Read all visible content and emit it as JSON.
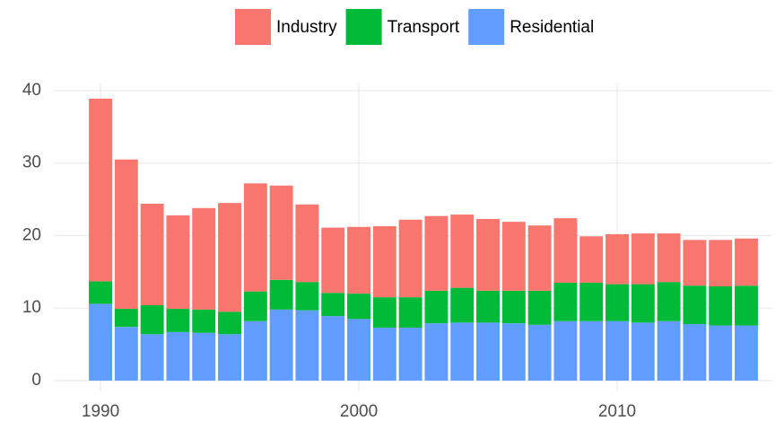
{
  "chart_data": {
    "type": "stacked_bar",
    "x": [
      1990,
      1991,
      1992,
      1993,
      1994,
      1995,
      1996,
      1997,
      1998,
      1999,
      2000,
      2001,
      2002,
      2003,
      2004,
      2005,
      2006,
      2007,
      2008,
      2009,
      2010,
      2011,
      2012,
      2013,
      2014,
      2015
    ],
    "series": [
      {
        "name": "Industry",
        "color": "#f8766d",
        "values": [
          25.2,
          20.6,
          14.0,
          12.9,
          14.0,
          15.0,
          14.9,
          13.0,
          10.7,
          9.0,
          9.2,
          9.8,
          10.7,
          10.3,
          10.1,
          9.9,
          9.5,
          9.0,
          8.9,
          6.4,
          6.9,
          7.0,
          6.7,
          6.3,
          6.4,
          6.5
        ]
      },
      {
        "name": "Transport",
        "color": "#00ba38",
        "values": [
          3.1,
          2.5,
          4.0,
          3.2,
          3.2,
          3.1,
          4.1,
          4.1,
          3.9,
          3.2,
          3.5,
          4.2,
          4.2,
          4.5,
          4.8,
          4.4,
          4.5,
          4.7,
          5.3,
          5.3,
          5.1,
          5.3,
          5.4,
          5.3,
          5.4,
          5.5
        ]
      },
      {
        "name": "Residential",
        "color": "#619cff",
        "values": [
          10.6,
          7.4,
          6.4,
          6.7,
          6.6,
          6.4,
          8.2,
          9.8,
          9.7,
          8.9,
          8.5,
          7.3,
          7.3,
          7.9,
          8.0,
          8.0,
          7.9,
          7.7,
          8.2,
          8.2,
          8.2,
          8.0,
          8.2,
          7.8,
          7.6,
          7.6
        ]
      }
    ],
    "xlim": [
      1988.2,
      2016
    ],
    "xticks": [
      1990,
      2000,
      2010
    ],
    "ylim": [
      -1.5,
      41
    ],
    "yticks": [
      0,
      10,
      20,
      30,
      40
    ],
    "grid": true,
    "legend": "top"
  }
}
